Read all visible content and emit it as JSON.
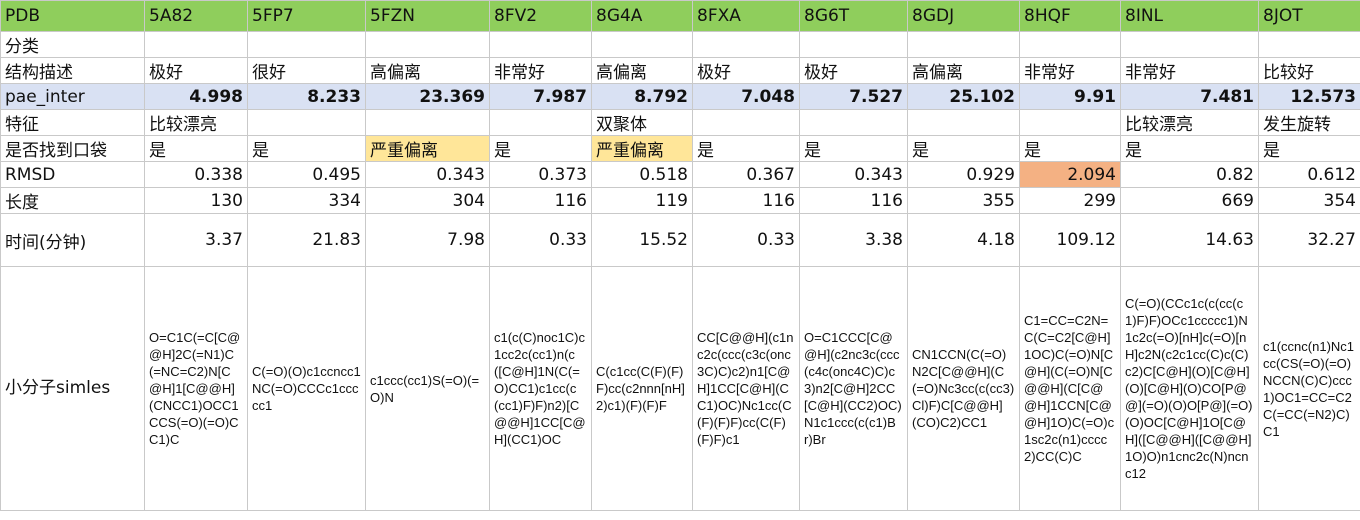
{
  "row_labels": {
    "pdb": "PDB",
    "category": "分类",
    "structure": "结构描述",
    "pae_inter": "pae_inter",
    "feature": "特征",
    "pocket": "是否找到口袋",
    "rmsd": "RMSD",
    "length": "长度",
    "time": "时间(分钟)",
    "smiles": "小分子simles"
  },
  "columns": [
    {
      "pdb": "5A82",
      "category": "",
      "structure": "极好",
      "pae_inter": "4.998",
      "feature": "比较漂亮",
      "pocket": "是",
      "rmsd": "0.338",
      "length": "130",
      "time": "3.37",
      "smiles": "O=C1C(=C[C@@H]2C(=N1)C(=NC=C2)N[C@H]1[C@@H](CNCC1)OCC1CCS(=O)(=O)CC1)C"
    },
    {
      "pdb": "5FP7",
      "category": "",
      "structure": "很好",
      "pae_inter": "8.233",
      "feature": "",
      "pocket": "是",
      "rmsd": "0.495",
      "length": "334",
      "time": "21.83",
      "smiles": "C(=O)(O)c1ccncc1NC(=O)CCCc1ccccc1"
    },
    {
      "pdb": "5FZN",
      "category": "",
      "structure": "高偏离",
      "pae_inter": "23.369",
      "feature": "",
      "pocket": "严重偏离",
      "rmsd": "0.343",
      "length": "304",
      "time": "7.98",
      "smiles": "c1ccc(cc1)S(=O)(=O)N"
    },
    {
      "pdb": "8FV2",
      "category": "",
      "structure": "非常好",
      "pae_inter": "7.987",
      "feature": "",
      "pocket": "是",
      "rmsd": "0.373",
      "length": "116",
      "time": "0.33",
      "smiles": "c1(c(C)noc1C)c1cc2c(cc1)n(c([C@H]1N(C(=O)CC1)c1cc(c(cc1)F)F)n2)[C@@H]1CC[C@H](CC1)OC"
    },
    {
      "pdb": "8G4A",
      "category": "",
      "structure": "高偏离",
      "pae_inter": "8.792",
      "feature": "双聚体",
      "pocket": "严重偏离",
      "rmsd": "0.518",
      "length": "119",
      "time": "15.52",
      "smiles": "C(c1cc(C(F)(F)F)cc(c2nnn[nH]2)c1)(F)(F)F"
    },
    {
      "pdb": "8FXA",
      "category": "",
      "structure": "极好",
      "pae_inter": "7.048",
      "feature": "",
      "pocket": "是",
      "rmsd": "0.367",
      "length": "116",
      "time": "0.33",
      "smiles": "CC[C@@H](c1nc2c(ccc(c3c(onc3C)C)c2)n1[C@H]1CC[C@H](CC1)OC)Nc1cc(C(F)(F)F)cc(C(F)(F)F)c1"
    },
    {
      "pdb": "8G6T",
      "category": "",
      "structure": "极好",
      "pae_inter": "7.527",
      "feature": "",
      "pocket": "是",
      "rmsd": "0.343",
      "length": "116",
      "time": "3.38",
      "smiles": "O=C1CCC[C@@H](c2nc3c(ccc(c4c(onc4C)C)c3)n2[C@H]2CC[C@H](CC2)OC)N1c1ccc(c(c1)Br)Br"
    },
    {
      "pdb": "8GDJ",
      "category": "",
      "structure": "高偏离",
      "pae_inter": "25.102",
      "feature": "",
      "pocket": "是",
      "rmsd": "0.929",
      "length": "355",
      "time": "4.18",
      "smiles": "CN1CCN(C(=O)N2C[C@@H](C(=O)Nc3cc(c(cc3)Cl)F)C[C@@H](CO)C2)CC1"
    },
    {
      "pdb": "8HQF",
      "category": "",
      "structure": "非常好",
      "pae_inter": "9.91",
      "feature": "",
      "pocket": "是",
      "rmsd": "2.094",
      "length": "299",
      "time": "109.12",
      "smiles": "C1=CC=C2N=C(C=C2[C@H]1OC)C(=O)N[C@H](C(=O)N[C@@H](C[C@@H]1CCN[C@@H]1O)C(=O)c1sc2c(n1)cccc2)CC(C)C"
    },
    {
      "pdb": "8INL",
      "category": "",
      "structure": "非常好",
      "pae_inter": "7.481",
      "feature": "比较漂亮",
      "pocket": "是",
      "rmsd": "0.82",
      "length": "669",
      "time": "14.63",
      "smiles": "C(=O)(CCc1c(c(cc(c1)F)F)OCc1ccccc1)N1c2c(=O)[nH]c(=O)[nH]c2N(c2c1cc(C)c(C)c2)C[C@H](O)[C@H](O)[C@H](O)CO[P@@](=O)(O)O[P@](=O)(O)OC[C@H]1O[C@H]([C@@H]([C@@H]1O)O)n1cnc2c(N)ncnc12"
    },
    {
      "pdb": "8JOT",
      "category": "",
      "structure": "比较好",
      "pae_inter": "12.573",
      "feature": "发生旋转",
      "pocket": "是",
      "rmsd": "0.612",
      "length": "354",
      "time": "32.27",
      "smiles": "c1(ccnc(n1)Nc1cc(CS(=O)(=O)NCCN(C)C)ccc1)OC1=CC=C2C(=CC(=N2)C)C1"
    }
  ],
  "highlight_colors": {
    "header_green": "#8fce5c",
    "pae_blue": "#d9e1f3",
    "yellow": "#ffe699",
    "orange": "#f4b183"
  }
}
